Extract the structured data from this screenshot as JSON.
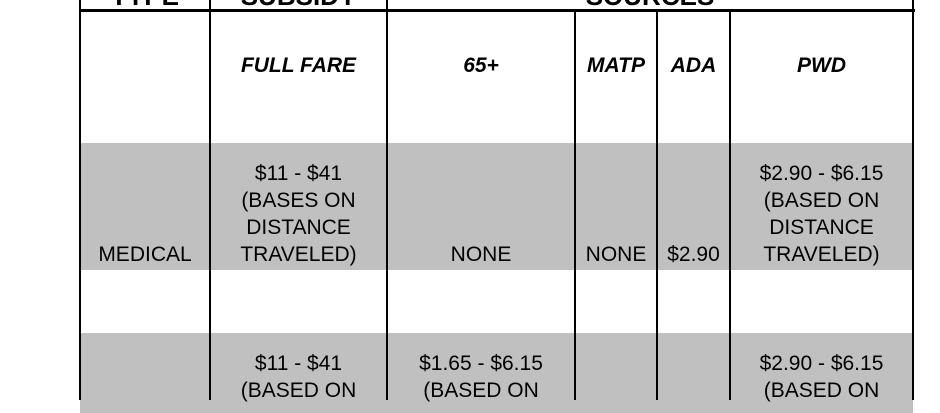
{
  "table": {
    "top_header": [
      "TYPE",
      "SUBSIDY",
      "SOURCES"
    ],
    "subheaders": [
      "FULL FARE",
      "65+",
      "MATP",
      "ADA",
      "PWD"
    ],
    "rows": [
      [
        [
          "MEDICAL"
        ],
        [
          "$11 - $41",
          "(BASES ON",
          "DISTANCE",
          "TRAVELED)"
        ],
        [
          "NONE"
        ],
        [
          "NONE"
        ],
        [
          "$2.90"
        ],
        [
          "$2.90 - $6.15",
          "(BASED ON",
          "DISTANCE",
          "TRAVELED)"
        ]
      ],
      [
        [],
        [
          "$11 - $41",
          "(BASED ON"
        ],
        [
          "$1.65 - $6.15",
          "(BASED ON"
        ],
        [],
        [],
        [
          "$2.90 - $6.15",
          "(BASED ON"
        ]
      ]
    ]
  }
}
